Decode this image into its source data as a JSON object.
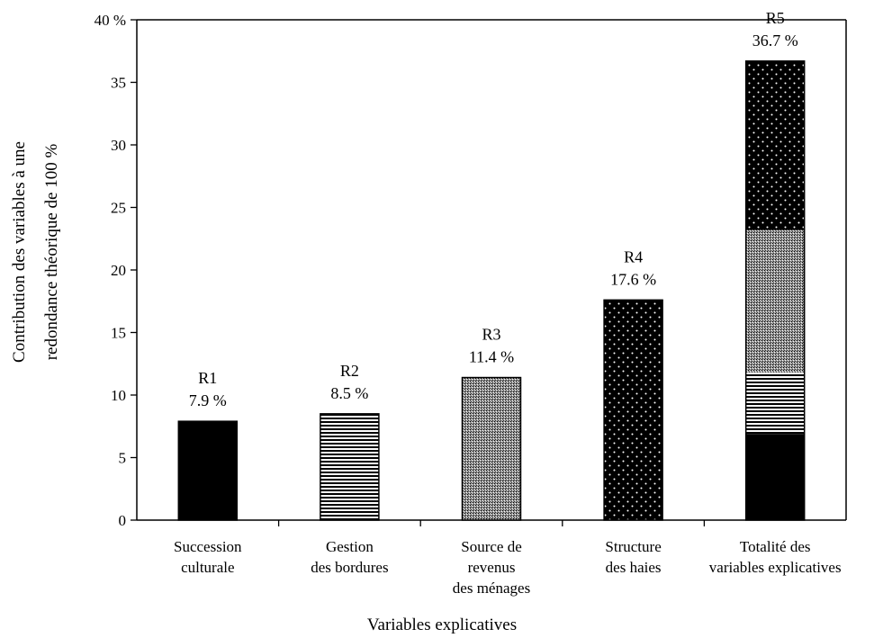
{
  "chart_data": {
    "type": "bar",
    "stacked_last": true,
    "ylim": [
      0,
      40
    ],
    "yticks": [
      0,
      5,
      10,
      15,
      20,
      25,
      30,
      35,
      40
    ],
    "ytick_labels": [
      "0",
      "5",
      "10",
      "15",
      "20",
      "25",
      "30",
      "35",
      "40 %"
    ],
    "ylabel_lines": [
      "Contribution des variables à une",
      "redondance théorique de 100 %"
    ],
    "xlabel": "Variables explicatives",
    "categories": [
      {
        "label_lines": [
          "Succession",
          "culturale"
        ],
        "code": "R1",
        "value_label": "7.9 %",
        "value": 7.9,
        "pattern": "solid"
      },
      {
        "label_lines": [
          "Gestion",
          "des bordures"
        ],
        "code": "R2",
        "value_label": "8.5 %",
        "value": 8.5,
        "pattern": "hlines"
      },
      {
        "label_lines": [
          "Source de",
          "revenus",
          "des ménages"
        ],
        "code": "R3",
        "value_label": "11.4 %",
        "value": 11.4,
        "pattern": "stipple"
      },
      {
        "label_lines": [
          "Structure",
          "des haies"
        ],
        "code": "R4",
        "value_label": "17.6 %",
        "value": 17.6,
        "pattern": "dots"
      },
      {
        "label_lines": [
          "Totalité des",
          "variables explicatives"
        ],
        "code": "R5",
        "value_label": "36.7 %",
        "value": 36.7,
        "segments": [
          {
            "pattern": "solid",
            "value": 6.9
          },
          {
            "pattern": "hlines",
            "value": 4.9
          },
          {
            "pattern": "stipple",
            "value": 11.4
          },
          {
            "pattern": "dots",
            "value": 13.5
          }
        ]
      }
    ],
    "colors": {
      "ink": "#000000",
      "background": "#ffffff"
    }
  }
}
